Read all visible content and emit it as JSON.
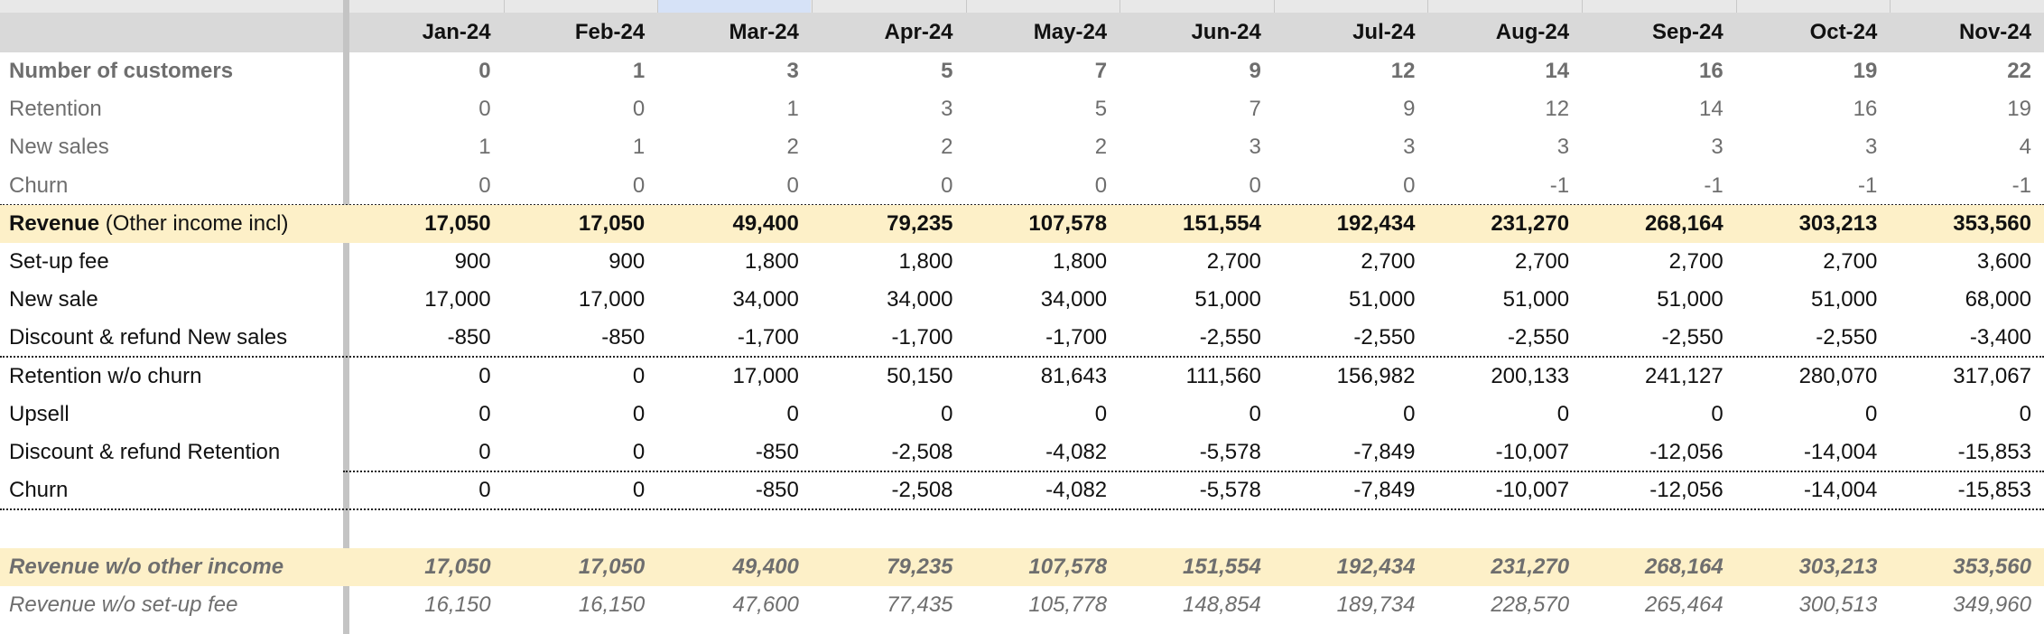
{
  "table": {
    "header": [
      "Jan-24",
      "Feb-24",
      "Mar-24",
      "Apr-24",
      "May-24",
      "Jun-24",
      "Jul-24",
      "Aug-24",
      "Sep-24",
      "Oct-24",
      "Nov-24"
    ],
    "rows": [
      {
        "label": "Number of customers",
        "values": [
          "0",
          "1",
          "3",
          "5",
          "7",
          "9",
          "12",
          "14",
          "16",
          "19",
          "22"
        ]
      },
      {
        "label": "Retention",
        "values": [
          "0",
          "0",
          "1",
          "3",
          "5",
          "7",
          "9",
          "12",
          "14",
          "16",
          "19"
        ]
      },
      {
        "label": "New sales",
        "values": [
          "1",
          "1",
          "2",
          "2",
          "2",
          "3",
          "3",
          "3",
          "3",
          "3",
          "4"
        ]
      },
      {
        "label": "Churn",
        "values": [
          "0",
          "0",
          "0",
          "0",
          "0",
          "0",
          "0",
          "-1",
          "-1",
          "-1",
          "-1"
        ]
      },
      {
        "label": "Revenue",
        "note": "(Other income incl)",
        "values": [
          "17,050",
          "17,050",
          "49,400",
          "79,235",
          "107,578",
          "151,554",
          "192,434",
          "231,270",
          "268,164",
          "303,213",
          "353,560"
        ]
      },
      {
        "label": "Set-up fee",
        "values": [
          "900",
          "900",
          "1,800",
          "1,800",
          "1,800",
          "2,700",
          "2,700",
          "2,700",
          "2,700",
          "2,700",
          "3,600"
        ]
      },
      {
        "label": "New sale",
        "values": [
          "17,000",
          "17,000",
          "34,000",
          "34,000",
          "34,000",
          "51,000",
          "51,000",
          "51,000",
          "51,000",
          "51,000",
          "68,000"
        ]
      },
      {
        "label": "Discount & refund New sales",
        "values": [
          "-850",
          "-850",
          "-1,700",
          "-1,700",
          "-1,700",
          "-2,550",
          "-2,550",
          "-2,550",
          "-2,550",
          "-2,550",
          "-3,400"
        ]
      },
      {
        "label": "Retention w/o churn",
        "values": [
          "0",
          "0",
          "17,000",
          "50,150",
          "81,643",
          "111,560",
          "156,982",
          "200,133",
          "241,127",
          "280,070",
          "317,067"
        ]
      },
      {
        "label": "Upsell",
        "values": [
          "0",
          "0",
          "0",
          "0",
          "0",
          "0",
          "0",
          "0",
          "0",
          "0",
          "0"
        ]
      },
      {
        "label": "Discount & refund Retention",
        "values": [
          "0",
          "0",
          "-850",
          "-2,508",
          "-4,082",
          "-5,578",
          "-7,849",
          "-10,007",
          "-12,056",
          "-14,004",
          "-15,853"
        ]
      },
      {
        "label": "Churn",
        "values": [
          "0",
          "0",
          "-850",
          "-2,508",
          "-4,082",
          "-5,578",
          "-7,849",
          "-10,007",
          "-12,056",
          "-14,004",
          "-15,853"
        ]
      },
      {
        "label": "Revenue w/o other income",
        "values": [
          "17,050",
          "17,050",
          "49,400",
          "79,235",
          "107,578",
          "151,554",
          "192,434",
          "231,270",
          "268,164",
          "303,213",
          "353,560"
        ]
      },
      {
        "label": "Revenue w/o set-up fee",
        "values": [
          "16,150",
          "16,150",
          "47,600",
          "77,435",
          "105,778",
          "148,854",
          "189,734",
          "228,570",
          "265,464",
          "300,513",
          "349,960"
        ]
      }
    ]
  }
}
